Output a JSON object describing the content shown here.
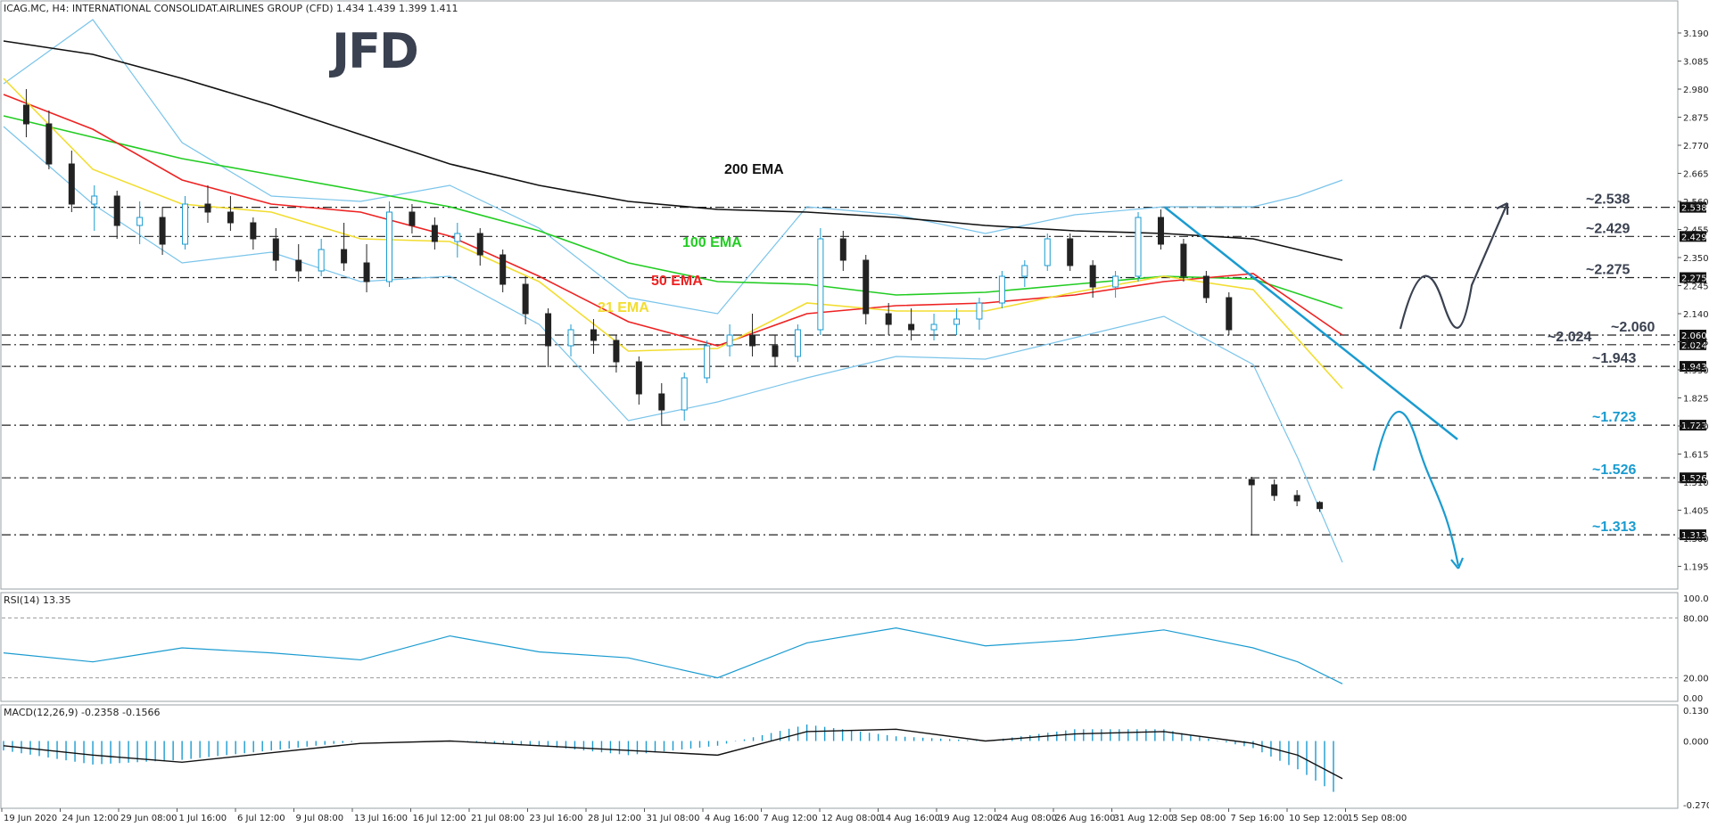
{
  "header": {
    "symbol_line": "ICAG.MC, H4:  INTERNATIONAL CONSOLIDAT.AIRLINES GROUP (CFD)  1.434 1.439 1.399 1.411"
  },
  "logo": {
    "text": "JFD",
    "color": "#3a4150"
  },
  "chart_data": [
    {
      "type": "line",
      "panel": "price",
      "ylim": [
        1.14,
        3.24
      ],
      "price_axis_ticks": [
        "3.190",
        "3.085",
        "2.980",
        "2.875",
        "2.770",
        "2.665",
        "2.560",
        "2.455",
        "2.350",
        "2.245",
        "2.140",
        "2.035",
        "1.930",
        "1.825",
        "1.720",
        "1.615",
        "1.510",
        "1.405",
        "1.300",
        "1.195"
      ],
      "x_tick_labels": [
        "19 Jun 2020",
        "24 Jun 12:00",
        "29 Jun 08:00",
        "1 Jul 16:00",
        "6 Jul 12:00",
        "9 Jul 08:00",
        "13 Jul 16:00",
        "16 Jul 12:00",
        "21 Jul 08:00",
        "23 Jul 16:00",
        "28 Jul 12:00",
        "31 Jul 08:00",
        "4 Aug 16:00",
        "7 Aug 12:00",
        "12 Aug 08:00",
        "14 Aug 16:00",
        "19 Aug 12:00",
        "24 Aug 08:00",
        "26 Aug 16:00",
        "31 Aug 12:00",
        "3 Sep 08:00",
        "7 Sep 16:00",
        "10 Sep 12:00",
        "15 Sep 08:00"
      ],
      "levels": [
        {
          "value": 2.538,
          "label": "~2.538",
          "box": "2.538",
          "color": "#3a4150"
        },
        {
          "value": 2.429,
          "label": "~2.429",
          "box": "2.429",
          "color": "#3a4150"
        },
        {
          "value": 2.275,
          "label": "~2.275",
          "box": "2.275",
          "color": "#3a4150"
        },
        {
          "value": 2.06,
          "label": "~2.060",
          "box": "2.060",
          "color": "#3a4150"
        },
        {
          "value": 2.024,
          "label": "~2.024",
          "box": "2.024",
          "color": "#3a4150"
        },
        {
          "value": 1.943,
          "label": "~1.943",
          "box": "1.943",
          "color": "#3a4150"
        },
        {
          "value": 1.723,
          "label": "~1.723",
          "box": "1.723",
          "color": "#1a9bd0"
        },
        {
          "value": 1.526,
          "label": "~1.526",
          "box": "1.526",
          "color": "#1a9bd0"
        },
        {
          "value": 1.313,
          "label": "~1.313",
          "box": "1.313",
          "color": "#1a9bd0"
        }
      ],
      "series": [
        {
          "name": "200 EMA",
          "color": "#111111",
          "x": [
            0,
            10,
            20,
            30,
            40,
            50,
            60,
            70,
            80,
            90,
            100,
            110,
            120,
            130,
            140,
            150
          ],
          "values": [
            3.16,
            3.11,
            3.02,
            2.92,
            2.81,
            2.7,
            2.62,
            2.56,
            2.53,
            2.52,
            2.5,
            2.47,
            2.45,
            2.44,
            2.42,
            2.34
          ]
        },
        {
          "name": "100 EMA",
          "color": "#22cc22",
          "x": [
            0,
            10,
            20,
            30,
            40,
            50,
            60,
            70,
            80,
            90,
            100,
            110,
            120,
            130,
            140,
            150
          ],
          "values": [
            2.88,
            2.8,
            2.72,
            2.66,
            2.6,
            2.54,
            2.45,
            2.33,
            2.26,
            2.25,
            2.21,
            2.22,
            2.25,
            2.28,
            2.27,
            2.16
          ]
        },
        {
          "name": "50 EMA",
          "color": "#ee2222",
          "x": [
            0,
            10,
            20,
            30,
            40,
            50,
            60,
            70,
            80,
            90,
            100,
            110,
            120,
            130,
            140,
            150
          ],
          "values": [
            2.96,
            2.83,
            2.64,
            2.55,
            2.52,
            2.43,
            2.28,
            2.11,
            2.02,
            2.14,
            2.17,
            2.18,
            2.21,
            2.26,
            2.29,
            2.06
          ]
        },
        {
          "name": "21 EMA",
          "color": "#f2dd30",
          "x": [
            0,
            10,
            20,
            30,
            40,
            50,
            60,
            70,
            80,
            90,
            100,
            110,
            120,
            130,
            140,
            150
          ],
          "values": [
            3.02,
            2.68,
            2.55,
            2.52,
            2.42,
            2.41,
            2.26,
            2.0,
            2.01,
            2.18,
            2.15,
            2.15,
            2.22,
            2.28,
            2.23,
            1.86
          ]
        }
      ],
      "bollinger": {
        "color": "#7ac4ea",
        "upper": [
          [
            0,
            3.0
          ],
          [
            10,
            3.24
          ],
          [
            20,
            2.78
          ],
          [
            30,
            2.58
          ],
          [
            40,
            2.56
          ],
          [
            50,
            2.62
          ],
          [
            60,
            2.46
          ],
          [
            70,
            2.2
          ],
          [
            80,
            2.14
          ],
          [
            90,
            2.54
          ],
          [
            100,
            2.51
          ],
          [
            110,
            2.44
          ],
          [
            120,
            2.51
          ],
          [
            130,
            2.54
          ],
          [
            140,
            2.54
          ],
          [
            145,
            2.58
          ],
          [
            150,
            2.64
          ]
        ],
        "lower": [
          [
            0,
            2.84
          ],
          [
            10,
            2.55
          ],
          [
            20,
            2.33
          ],
          [
            30,
            2.37
          ],
          [
            40,
            2.26
          ],
          [
            50,
            2.28
          ],
          [
            60,
            2.1
          ],
          [
            70,
            1.74
          ],
          [
            80,
            1.81
          ],
          [
            90,
            1.9
          ],
          [
            100,
            1.98
          ],
          [
            110,
            1.97
          ],
          [
            120,
            2.05
          ],
          [
            130,
            2.13
          ],
          [
            140,
            1.95
          ],
          [
            145,
            1.6
          ],
          [
            150,
            1.21
          ]
        ]
      },
      "candles": {
        "bull_color": "#1a9bd0",
        "bear_color": "#222222",
        "ohlc": [
          [
            2.92,
            2.98,
            2.8,
            2.85
          ],
          [
            2.85,
            2.9,
            2.68,
            2.7
          ],
          [
            2.7,
            2.75,
            2.52,
            2.55
          ],
          [
            2.55,
            2.62,
            2.45,
            2.58
          ],
          [
            2.58,
            2.6,
            2.42,
            2.47
          ],
          [
            2.47,
            2.56,
            2.4,
            2.5
          ],
          [
            2.5,
            2.54,
            2.36,
            2.4
          ],
          [
            2.4,
            2.58,
            2.38,
            2.55
          ],
          [
            2.55,
            2.62,
            2.48,
            2.52
          ],
          [
            2.52,
            2.58,
            2.45,
            2.48
          ],
          [
            2.48,
            2.5,
            2.38,
            2.42
          ],
          [
            2.42,
            2.46,
            2.3,
            2.34
          ],
          [
            2.34,
            2.4,
            2.26,
            2.3
          ],
          [
            2.3,
            2.42,
            2.28,
            2.38
          ],
          [
            2.38,
            2.48,
            2.3,
            2.33
          ],
          [
            2.33,
            2.4,
            2.22,
            2.26
          ],
          [
            2.26,
            2.56,
            2.24,
            2.52
          ],
          [
            2.52,
            2.55,
            2.44,
            2.47
          ],
          [
            2.47,
            2.5,
            2.38,
            2.41
          ],
          [
            2.41,
            2.48,
            2.35,
            2.44
          ],
          [
            2.44,
            2.46,
            2.32,
            2.36
          ],
          [
            2.36,
            2.38,
            2.22,
            2.25
          ],
          [
            2.25,
            2.28,
            2.1,
            2.14
          ],
          [
            2.14,
            2.16,
            1.94,
            2.02
          ],
          [
            2.02,
            2.1,
            1.98,
            2.08
          ],
          [
            2.08,
            2.12,
            1.99,
            2.04
          ],
          [
            2.04,
            2.06,
            1.92,
            1.96
          ],
          [
            1.96,
            1.98,
            1.8,
            1.84
          ],
          [
            1.84,
            1.88,
            1.72,
            1.78
          ],
          [
            1.78,
            1.92,
            1.74,
            1.9
          ],
          [
            1.9,
            2.04,
            1.88,
            2.02
          ],
          [
            2.02,
            2.1,
            1.98,
            2.06
          ],
          [
            2.06,
            2.14,
            1.98,
            2.02
          ],
          [
            2.02,
            2.06,
            1.94,
            1.98
          ],
          [
            1.98,
            2.1,
            1.96,
            2.08
          ],
          [
            2.08,
            2.46,
            2.06,
            2.42
          ],
          [
            2.42,
            2.45,
            2.3,
            2.34
          ],
          [
            2.34,
            2.36,
            2.1,
            2.14
          ],
          [
            2.14,
            2.18,
            2.06,
            2.1
          ],
          [
            2.1,
            2.16,
            2.04,
            2.08
          ],
          [
            2.08,
            2.14,
            2.04,
            2.1
          ],
          [
            2.1,
            2.16,
            2.06,
            2.12
          ],
          [
            2.12,
            2.2,
            2.08,
            2.18
          ],
          [
            2.18,
            2.3,
            2.16,
            2.28
          ],
          [
            2.28,
            2.34,
            2.24,
            2.32
          ],
          [
            2.32,
            2.44,
            2.3,
            2.42
          ],
          [
            2.42,
            2.44,
            2.3,
            2.32
          ],
          [
            2.32,
            2.34,
            2.2,
            2.24
          ],
          [
            2.24,
            2.3,
            2.2,
            2.28
          ],
          [
            2.28,
            2.52,
            2.26,
            2.5
          ],
          [
            2.5,
            2.53,
            2.38,
            2.4
          ],
          [
            2.4,
            2.42,
            2.26,
            2.28
          ],
          [
            2.28,
            2.3,
            2.18,
            2.2
          ],
          [
            2.2,
            2.22,
            2.06,
            2.08
          ],
          [
            1.52,
            1.53,
            1.31,
            1.5
          ],
          [
            1.5,
            1.52,
            1.44,
            1.46
          ],
          [
            1.46,
            1.48,
            1.42,
            1.44
          ],
          [
            1.434,
            1.439,
            1.399,
            1.411
          ]
        ]
      },
      "annotations": [
        {
          "text": "200 EMA",
          "color": "#111111"
        },
        {
          "text": "100 EMA",
          "color": "#22cc22"
        },
        {
          "text": "50 EMA",
          "color": "#ee2222"
        },
        {
          "text": "21 EMA",
          "color": "#f2dd30"
        }
      ]
    },
    {
      "type": "line",
      "panel": "rsi",
      "title": "RSI(14) 13.35",
      "ylim": [
        0,
        100
      ],
      "ticks": [
        "100.00",
        "80.00",
        "20.00",
        "0.00"
      ],
      "color": "#1a9bd0",
      "x": [
        0,
        10,
        20,
        30,
        40,
        50,
        60,
        70,
        80,
        90,
        100,
        110,
        120,
        130,
        140,
        145,
        150
      ],
      "values": [
        45,
        36,
        50,
        45,
        38,
        62,
        46,
        40,
        20,
        55,
        70,
        52,
        58,
        68,
        50,
        36,
        14
      ]
    },
    {
      "type": "bar",
      "panel": "macd",
      "title": "MACD(12,26,9) -0.2358 -0.1566",
      "ylim": [
        -0.2706,
        0.1306
      ],
      "ticks": [
        "0.1306",
        "0.0000",
        "-0.2706"
      ],
      "histogram_color": "#1a9bd0",
      "signal_color": "#111111",
      "x": [
        0,
        10,
        20,
        30,
        40,
        50,
        60,
        70,
        80,
        90,
        100,
        110,
        120,
        130,
        140,
        145,
        150
      ],
      "histogram": [
        -0.04,
        -0.1,
        -0.08,
        -0.04,
        0.0,
        0.0,
        -0.02,
        -0.06,
        -0.02,
        0.07,
        0.02,
        0.0,
        0.05,
        0.05,
        -0.03,
        -0.12,
        -0.24
      ],
      "signal": [
        -0.02,
        -0.06,
        -0.09,
        -0.05,
        -0.01,
        0.0,
        -0.02,
        -0.04,
        -0.06,
        0.04,
        0.05,
        0.0,
        0.03,
        0.04,
        -0.01,
        -0.06,
        -0.16
      ]
    }
  ]
}
